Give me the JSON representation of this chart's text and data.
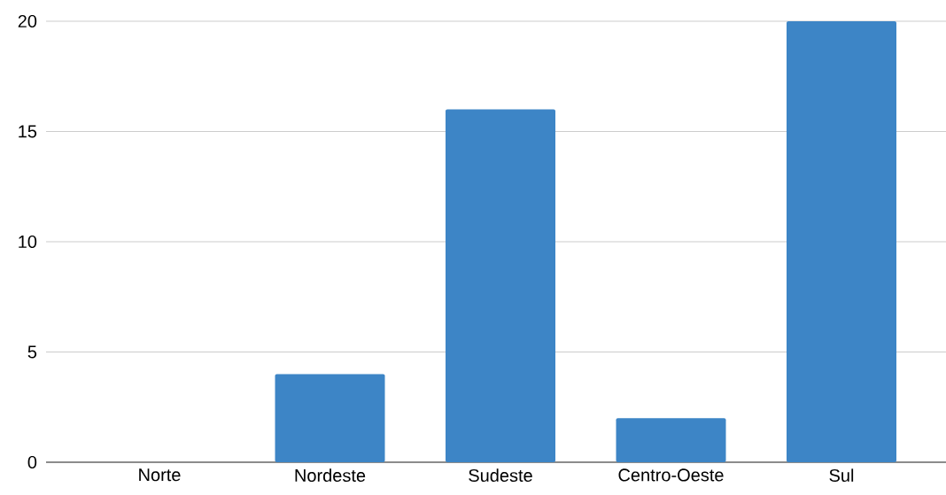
{
  "chart_data": {
    "type": "bar",
    "categories": [
      "Norte",
      "Nordeste",
      "Sudeste",
      "Centro-Oeste",
      "Sul"
    ],
    "values": [
      0,
      4,
      16,
      2,
      20
    ],
    "color": "#3d85c6",
    "ylim": [
      0,
      20
    ],
    "yticks": [
      0,
      5,
      10,
      15,
      20
    ],
    "grid": "y"
  }
}
